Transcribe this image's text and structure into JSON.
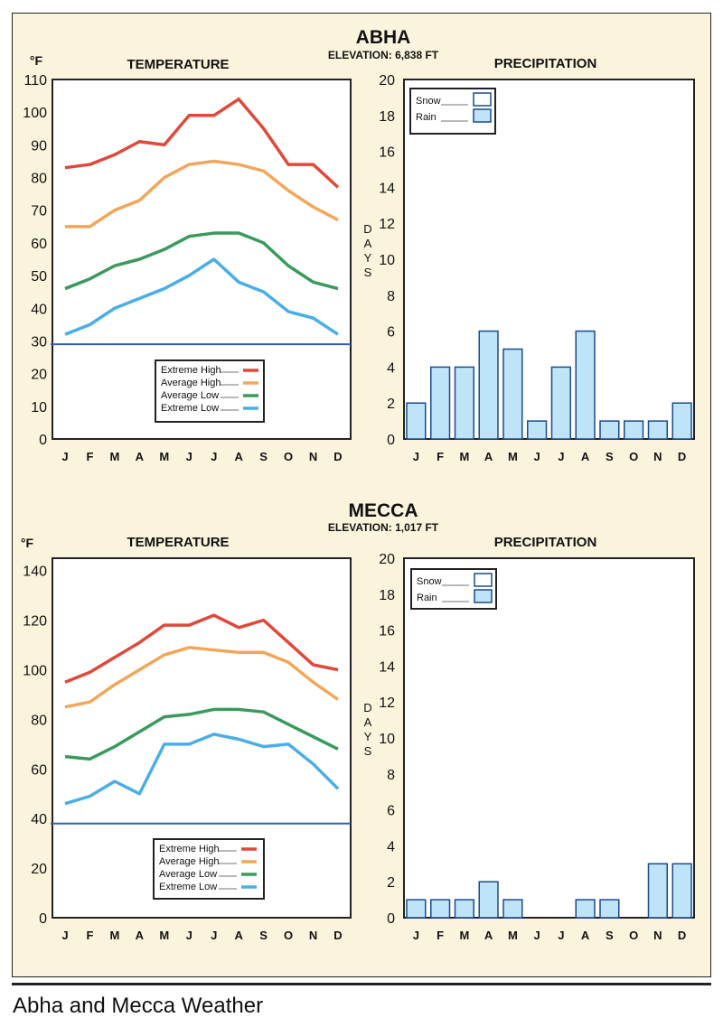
{
  "caption": "Abha and Mecca Weather",
  "chart_data": [
    {
      "city": "ABHA",
      "elevation": "ELEVATION: 6,838 FT",
      "temperature": {
        "type": "line",
        "title": "TEMPERATURE",
        "unit": "°F",
        "categories": [
          "J",
          "F",
          "M",
          "A",
          "M",
          "J",
          "J",
          "A",
          "S",
          "O",
          "N",
          "D"
        ],
        "ylim": [
          0,
          110
        ],
        "yticks": [
          0,
          10,
          20,
          30,
          40,
          50,
          60,
          70,
          80,
          90,
          100,
          110
        ],
        "baseline": 29,
        "series": [
          {
            "name": "Extreme High",
            "color": "#e0483a",
            "values": [
              83,
              84,
              87,
              91,
              90,
              99,
              99,
              104,
              95,
              84,
              84,
              77
            ]
          },
          {
            "name": "Average High",
            "color": "#f2a65a",
            "values": [
              65,
              65,
              70,
              73,
              80,
              84,
              85,
              84,
              82,
              76,
              71,
              67
            ]
          },
          {
            "name": "Average Low",
            "color": "#3a9a5c",
            "values": [
              46,
              49,
              53,
              55,
              58,
              62,
              63,
              63,
              60,
              53,
              48,
              46
            ]
          },
          {
            "name": "Extreme Low",
            "color": "#4aaee6",
            "values": [
              32,
              35,
              40,
              43,
              46,
              50,
              55,
              48,
              45,
              39,
              37,
              32
            ]
          }
        ]
      },
      "precipitation": {
        "type": "bar",
        "title": "PRECIPITATION",
        "ylabel": "DAYS",
        "categories": [
          "J",
          "F",
          "M",
          "A",
          "M",
          "J",
          "J",
          "A",
          "S",
          "O",
          "N",
          "D"
        ],
        "ylim": [
          0,
          20
        ],
        "yticks": [
          0,
          2,
          4,
          6,
          8,
          10,
          12,
          14,
          16,
          18,
          20
        ],
        "legend": [
          {
            "name": "Snow",
            "color": "#ffffff"
          },
          {
            "name": "Rain",
            "color": "#bfe3f7"
          }
        ],
        "series": [
          {
            "name": "Rain",
            "values": [
              2,
              4,
              4,
              6,
              5,
              1,
              4,
              6,
              1,
              1,
              1,
              2
            ]
          }
        ]
      }
    },
    {
      "city": "MECCA",
      "elevation": "ELEVATION: 1,017 FT",
      "temperature": {
        "type": "line",
        "title": "TEMPERATURE",
        "unit": "°F",
        "categories": [
          "J",
          "F",
          "M",
          "A",
          "M",
          "J",
          "J",
          "A",
          "S",
          "O",
          "N",
          "D"
        ],
        "ylim": [
          0,
          145
        ],
        "yticks": [
          0,
          20,
          40,
          60,
          80,
          100,
          120,
          140
        ],
        "baseline": 38,
        "series": [
          {
            "name": "Extreme High",
            "color": "#e0483a",
            "values": [
              95,
              99,
              105,
              111,
              118,
              118,
              122,
              117,
              120,
              111,
              102,
              100
            ]
          },
          {
            "name": "Average High",
            "color": "#f2a65a",
            "values": [
              85,
              87,
              94,
              100,
              106,
              109,
              108,
              107,
              107,
              103,
              95,
              88
            ]
          },
          {
            "name": "Average Low",
            "color": "#3a9a5c",
            "values": [
              65,
              64,
              69,
              75,
              81,
              82,
              84,
              84,
              83,
              78,
              73,
              68
            ]
          },
          {
            "name": "Extreme Low",
            "color": "#4aaee6",
            "values": [
              46,
              49,
              55,
              50,
              70,
              70,
              74,
              72,
              69,
              70,
              62,
              52
            ]
          }
        ]
      },
      "precipitation": {
        "type": "bar",
        "title": "PRECIPITATION",
        "ylabel": "DAYS",
        "categories": [
          "J",
          "F",
          "M",
          "A",
          "M",
          "J",
          "J",
          "A",
          "S",
          "O",
          "N",
          "D"
        ],
        "ylim": [
          0,
          20
        ],
        "yticks": [
          0,
          2,
          4,
          6,
          8,
          10,
          12,
          14,
          16,
          18,
          20
        ],
        "legend": [
          {
            "name": "Snow",
            "color": "#ffffff"
          },
          {
            "name": "Rain",
            "color": "#bfe3f7"
          }
        ],
        "series": [
          {
            "name": "Rain",
            "values": [
              1,
              1,
              1,
              2,
              1,
              0,
              0,
              1,
              1,
              0,
              3,
              3
            ]
          }
        ]
      }
    }
  ]
}
